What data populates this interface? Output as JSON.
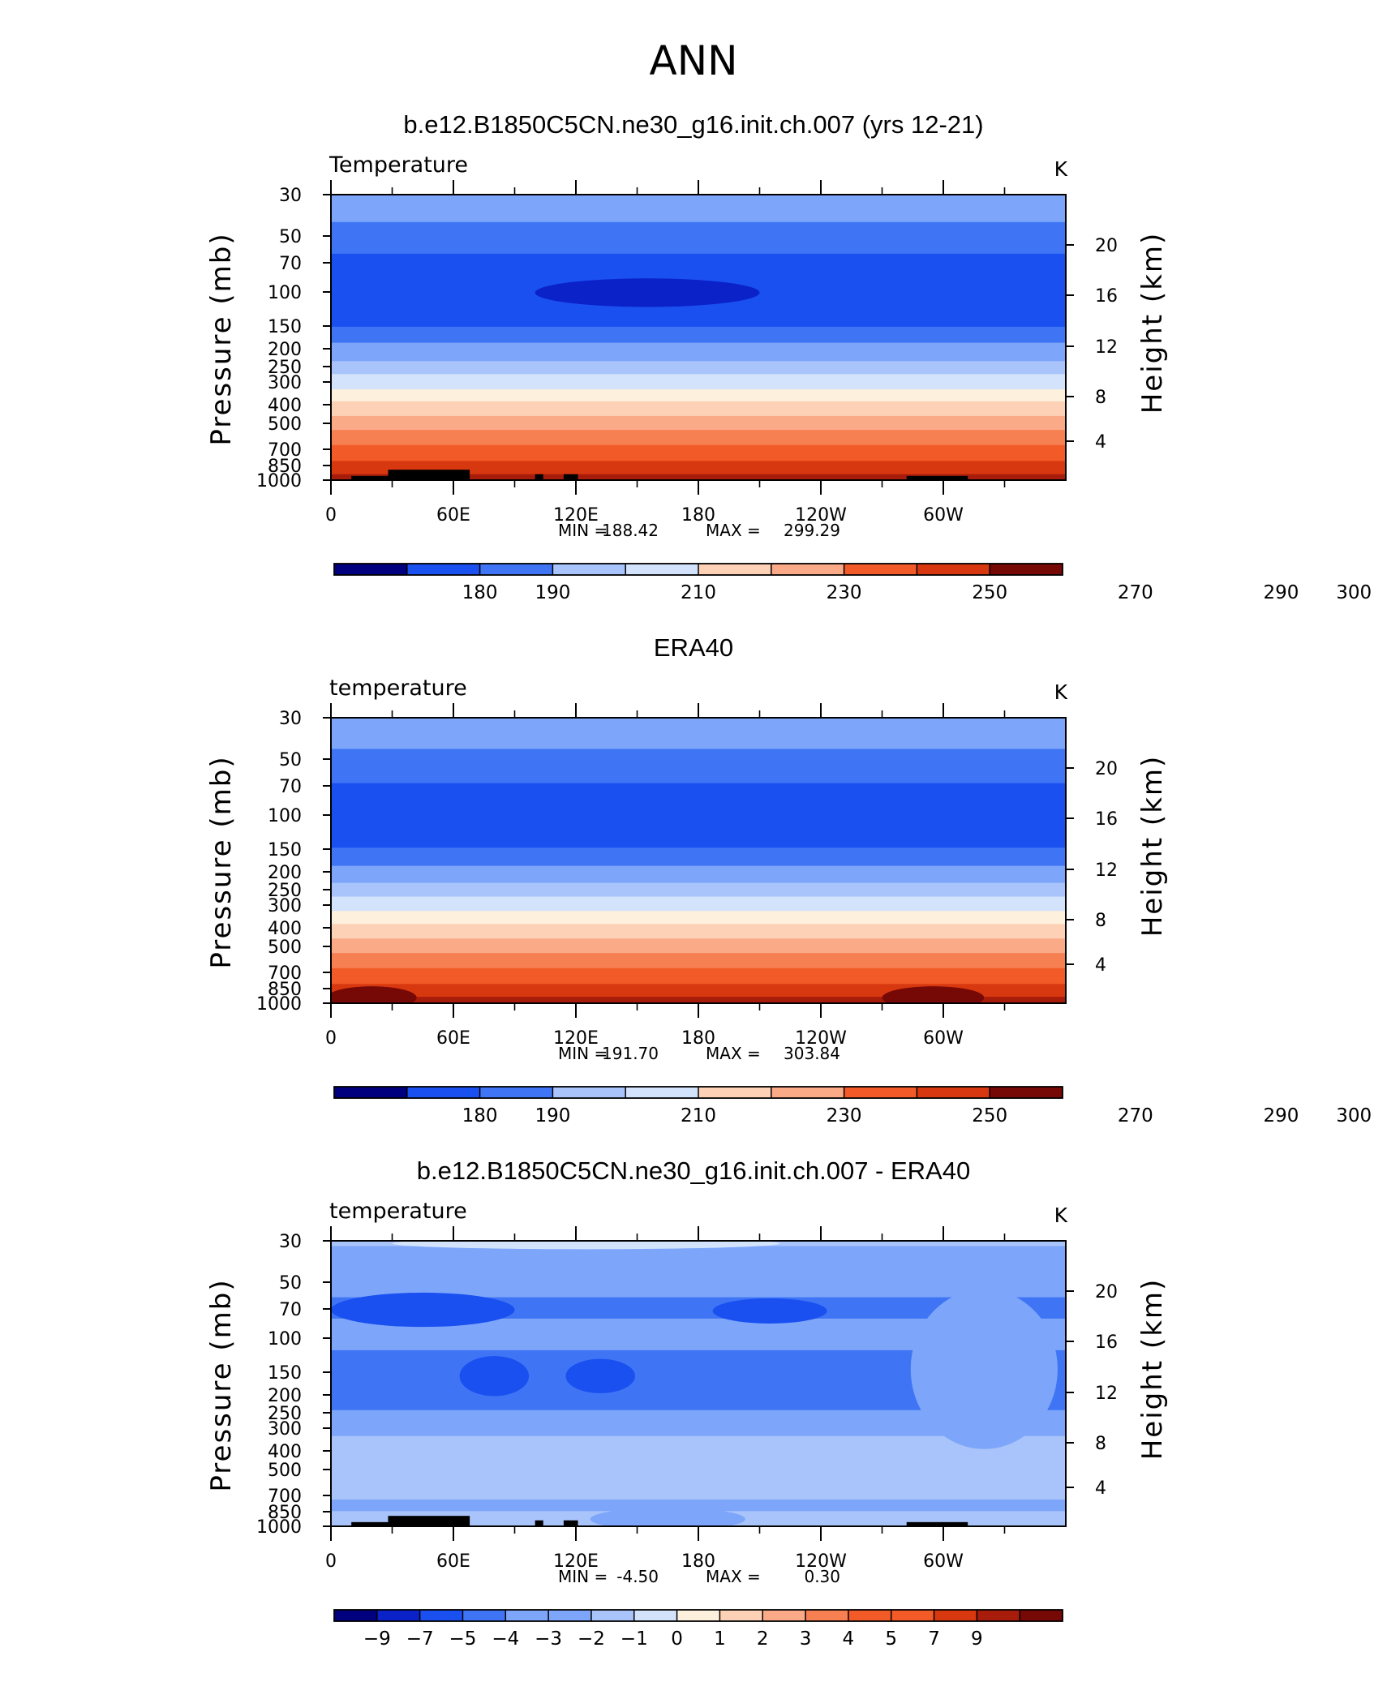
{
  "figure": {
    "main_title": "ANN"
  },
  "scale_labels": {
    "absolute": [
      "180",
      "190",
      "210",
      "230",
      "250",
      "270",
      "290",
      "300"
    ],
    "difference": [
      "-9",
      "-7",
      "-5",
      "-4",
      "-3",
      "-2",
      "-1",
      "0",
      "1",
      "2",
      "3",
      "4",
      "5",
      "7",
      "9"
    ]
  },
  "palette": [
    "#00007f",
    "#0a22c8",
    "#1a4ff0",
    "#3f75f5",
    "#7da6fa",
    "#a9c4fa",
    "#d3e3fc",
    "#fdf0dc",
    "#fcd1b6",
    "#fbaa88",
    "#f78052",
    "#f25a28",
    "#d8380f",
    "#a81c0c",
    "#760806"
  ],
  "shared_axes": {
    "ylabel": "Pressure (mb)",
    "y2label": "Height (km)",
    "units": "K",
    "pressure_ticks": [
      "30",
      "50",
      "70",
      "100",
      "150",
      "200",
      "250",
      "300",
      "400",
      "500",
      "700",
      "850",
      "1000"
    ],
    "height_ticks": [
      "20",
      "16",
      "12",
      "8",
      "4"
    ],
    "lon_ticks": [
      "0",
      "60E",
      "120E",
      "180",
      "120W",
      "60W"
    ]
  },
  "chart_data": [
    {
      "type": "heatmap",
      "title": "b.e12.B1850C5CN.ne30_g16.init.ch.007 (yrs 12-21)",
      "variable": "Temperature",
      "units": "K",
      "ylabel": "Pressure (mb)",
      "y2label": "Height (km)",
      "x_ticks": [
        "0",
        "60E",
        "120E",
        "180",
        "120W",
        "60W"
      ],
      "y_ticks": [
        "30",
        "50",
        "70",
        "100",
        "150",
        "200",
        "250",
        "300",
        "400",
        "500",
        "700",
        "850",
        "1000"
      ],
      "y2_ticks": [
        "20",
        "16",
        "12",
        "8",
        "4"
      ],
      "y_scale": "log",
      "ylim": [
        30,
        1000
      ],
      "xlim": [
        0,
        360
      ],
      "stats": {
        "min_label": "MIN =",
        "min": "188.42",
        "max_label": "MAX =",
        "max": "299.29"
      },
      "colorbar_labels": [
        "180",
        "190",
        "210",
        "230",
        "250",
        "270",
        "290",
        "300"
      ],
      "bands": [
        {
          "p_top": 30,
          "p_bottom": 42,
          "color": "#7da6fa"
        },
        {
          "p_top": 42,
          "p_bottom": 62,
          "color": "#3f75f5"
        },
        {
          "p_top": 62,
          "p_bottom": 152,
          "color": "#1a4ff0"
        },
        {
          "p_top": 152,
          "p_bottom": 185,
          "color": "#3f75f5"
        },
        {
          "p_top": 185,
          "p_bottom": 232,
          "color": "#7da6fa"
        },
        {
          "p_top": 232,
          "p_bottom": 272,
          "color": "#a9c4fa"
        },
        {
          "p_top": 272,
          "p_bottom": 328,
          "color": "#d3e3fc"
        },
        {
          "p_top": 328,
          "p_bottom": 380,
          "color": "#fdf0dc"
        },
        {
          "p_top": 380,
          "p_bottom": 455,
          "color": "#fcd1b6"
        },
        {
          "p_top": 455,
          "p_bottom": 540,
          "color": "#fbaa88"
        },
        {
          "p_top": 540,
          "p_bottom": 650,
          "color": "#f78052"
        },
        {
          "p_top": 650,
          "p_bottom": 790,
          "color": "#f25a28"
        },
        {
          "p_top": 790,
          "p_bottom": 930,
          "color": "#d8380f"
        },
        {
          "p_top": 930,
          "p_bottom": 1000,
          "color": "#a81c0c"
        }
      ],
      "blobs": [
        {
          "lon": 155,
          "p": 100,
          "dlon": 55,
          "dp": 0.025,
          "color": "#0a22c8"
        }
      ],
      "topography": [
        [
          10,
          40,
          950
        ],
        [
          28,
          40,
          880
        ],
        [
          100,
          4,
          930
        ],
        [
          114,
          7,
          930
        ],
        [
          282,
          30,
          950
        ]
      ]
    },
    {
      "type": "heatmap",
      "title": "ERA40",
      "variable": "temperature",
      "units": "K",
      "ylabel": "Pressure (mb)",
      "y2label": "Height (km)",
      "x_ticks": [
        "0",
        "60E",
        "120E",
        "180",
        "120W",
        "60W"
      ],
      "y_ticks": [
        "30",
        "50",
        "70",
        "100",
        "150",
        "200",
        "250",
        "300",
        "400",
        "500",
        "700",
        "850",
        "1000"
      ],
      "y2_ticks": [
        "20",
        "16",
        "12",
        "8",
        "4"
      ],
      "y_scale": "log",
      "ylim": [
        30,
        1000
      ],
      "xlim": [
        0,
        360
      ],
      "stats": {
        "min_label": "MIN =",
        "min": "191.70",
        "max_label": "MAX =",
        "max": "303.84"
      },
      "colorbar_labels": [
        "180",
        "190",
        "210",
        "230",
        "250",
        "270",
        "290",
        "300"
      ],
      "bands": [
        {
          "p_top": 30,
          "p_bottom": 44,
          "color": "#7da6fa"
        },
        {
          "p_top": 44,
          "p_bottom": 67,
          "color": "#3f75f5"
        },
        {
          "p_top": 67,
          "p_bottom": 148,
          "color": "#1a4ff0"
        },
        {
          "p_top": 148,
          "p_bottom": 185,
          "color": "#3f75f5"
        },
        {
          "p_top": 185,
          "p_bottom": 228,
          "color": "#7da6fa"
        },
        {
          "p_top": 228,
          "p_bottom": 270,
          "color": "#a9c4fa"
        },
        {
          "p_top": 270,
          "p_bottom": 322,
          "color": "#d3e3fc"
        },
        {
          "p_top": 322,
          "p_bottom": 378,
          "color": "#fdf0dc"
        },
        {
          "p_top": 378,
          "p_bottom": 452,
          "color": "#fcd1b6"
        },
        {
          "p_top": 452,
          "p_bottom": 540,
          "color": "#fbaa88"
        },
        {
          "p_top": 540,
          "p_bottom": 650,
          "color": "#f78052"
        },
        {
          "p_top": 650,
          "p_bottom": 790,
          "color": "#f25a28"
        },
        {
          "p_top": 790,
          "p_bottom": 925,
          "color": "#d8380f"
        },
        {
          "p_top": 925,
          "p_bottom": 1000,
          "color": "#a81c0c"
        }
      ],
      "blobs": [
        {
          "lon": 20,
          "p": 935,
          "dlon": 22,
          "dp": 0.02,
          "color": "#760806"
        },
        {
          "lon": 295,
          "p": 935,
          "dlon": 25,
          "dp": 0.02,
          "color": "#760806"
        }
      ],
      "topography": []
    },
    {
      "type": "heatmap",
      "title": "b.e12.B1850C5CN.ne30_g16.init.ch.007 - ERA40",
      "variable": "temperature",
      "units": "K",
      "ylabel": "Pressure (mb)",
      "y2label": "Height (km)",
      "x_ticks": [
        "0",
        "60E",
        "120E",
        "180",
        "120W",
        "60W"
      ],
      "y_ticks": [
        "30",
        "50",
        "70",
        "100",
        "150",
        "200",
        "250",
        "300",
        "400",
        "500",
        "700",
        "850",
        "1000"
      ],
      "y2_ticks": [
        "20",
        "16",
        "12",
        "8",
        "4"
      ],
      "y_scale": "log",
      "ylim": [
        30,
        1000
      ],
      "xlim": [
        0,
        360
      ],
      "stats": {
        "min_label": "MIN =",
        "min": "-4.50",
        "max_label": "MAX =",
        "max": "0.30"
      },
      "colorbar_labels": [
        "-9",
        "-7",
        "-5",
        "-4",
        "-3",
        "-2",
        "-1",
        "0",
        "1",
        "2",
        "3",
        "4",
        "5",
        "7",
        "9"
      ],
      "bands": [
        {
          "p_top": 30,
          "p_bottom": 32,
          "color": "#a9c4fa"
        },
        {
          "p_top": 32,
          "p_bottom": 60,
          "color": "#7da6fa"
        },
        {
          "p_top": 60,
          "p_bottom": 78,
          "color": "#3f75f5"
        },
        {
          "p_top": 78,
          "p_bottom": 115,
          "color": "#7da6fa"
        },
        {
          "p_top": 115,
          "p_bottom": 240,
          "color": "#3f75f5"
        },
        {
          "p_top": 240,
          "p_bottom": 330,
          "color": "#7da6fa"
        },
        {
          "p_top": 330,
          "p_bottom": 720,
          "color": "#a9c4fa"
        },
        {
          "p_top": 720,
          "p_bottom": 830,
          "color": "#7da6fa"
        },
        {
          "p_top": 830,
          "p_bottom": 1000,
          "color": "#a9c4fa"
        }
      ],
      "blobs": [
        {
          "lon": 125,
          "p": 31,
          "dlon": 95,
          "dp": 0.01,
          "color": "#d3e3fc"
        },
        {
          "lon": 45,
          "p": 70,
          "dlon": 45,
          "dp": 0.03,
          "color": "#1a4ff0"
        },
        {
          "lon": 215,
          "p": 71,
          "dlon": 28,
          "dp": 0.022,
          "color": "#1a4ff0"
        },
        {
          "lon": 80,
          "p": 158,
          "dlon": 17,
          "dp": 0.035,
          "color": "#1a4ff0"
        },
        {
          "lon": 132,
          "p": 158,
          "dlon": 17,
          "dp": 0.03,
          "color": "#1a4ff0"
        },
        {
          "lon": 320,
          "p": 145,
          "dlon": 36,
          "dp": 0.14,
          "color": "#7da6fa"
        },
        {
          "lon": 165,
          "p": 915,
          "dlon": 38,
          "dp": 0.02,
          "color": "#7da6fa"
        }
      ],
      "topography": [
        [
          10,
          40,
          950
        ],
        [
          28,
          40,
          880
        ],
        [
          100,
          4,
          930
        ],
        [
          114,
          7,
          930
        ],
        [
          282,
          30,
          950
        ]
      ]
    }
  ]
}
